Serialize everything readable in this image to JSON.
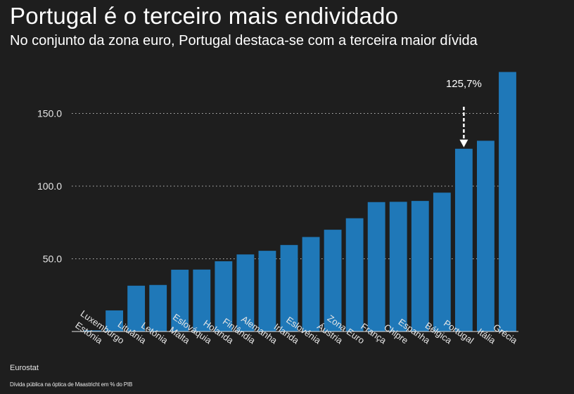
{
  "chart_data": {
    "type": "bar",
    "title": "Portugal é o terceiro mais endividado",
    "subtitle": "No conjunto da zona euro, Portugal destaca-se com a terceira maior dívida",
    "categories": [
      "Estónia",
      "Luxemburgo",
      "Lituânia",
      "Letónia",
      "Malta",
      "Eslováquia",
      "Holanda",
      "Finlândia",
      "Alemanha",
      "Irlanda",
      "Eslovénia",
      "Áustria",
      "Zona Euro",
      "França",
      "Chipre",
      "Espanha",
      "Bélgica",
      "Portugal",
      "Itália",
      "Grécia"
    ],
    "values": [
      0.8,
      14.5,
      31.5,
      32,
      42.5,
      42.6,
      48.3,
      53,
      55.5,
      59.5,
      65,
      70,
      77.9,
      89,
      89.2,
      89.8,
      95.5,
      125.7,
      131.2,
      178.5
    ],
    "yticks": [
      "50.0",
      "100.0",
      "150.0"
    ],
    "ytick_values": [
      50,
      100,
      150
    ],
    "ylim": [
      0,
      190
    ],
    "bar_color": "#1f78b8",
    "annotation": {
      "label": "125,7%",
      "category": "Portugal",
      "value": 125.7
    },
    "source": "Eurostat",
    "note": "Dívida pública na óptica de Maastricht em % do PIB"
  }
}
